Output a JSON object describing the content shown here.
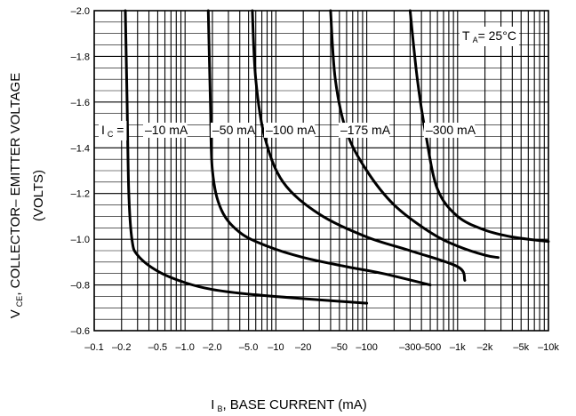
{
  "chart_data": {
    "type": "line",
    "xlabel": "I",
    "xlabel_sub": "B",
    "xlabel_rest": ", BASE CURRENT (mA)",
    "ylabel": "V",
    "ylabel_sub": "CE",
    "ylabel_rest": ", COLLECTOR– EMITTER VOLTAGE",
    "ylabel_line2": "(VOLTS)",
    "x_scale": "log",
    "xlim": [
      -0.1,
      -10000
    ],
    "ylim": [
      -0.6,
      -2.0
    ],
    "x_ticks": [
      -0.1,
      -0.2,
      -0.5,
      -1.0,
      -2.0,
      -5.0,
      -10,
      -20,
      -50,
      -100,
      -300,
      -500,
      -1000,
      -2000,
      -5000,
      -10000
    ],
    "x_tick_labels": [
      "–0.1",
      "–0.2",
      "–0.5",
      "–1.0",
      "–2.0",
      "–5.0",
      "–10",
      "–20",
      "–50",
      "–100",
      "–300",
      "–500",
      "–1k",
      "–2k",
      "–5k",
      "–10k"
    ],
    "y_ticks": [
      -0.6,
      -0.8,
      -1.0,
      -1.2,
      -1.4,
      -1.6,
      -1.8,
      -2.0
    ],
    "y_tick_labels": [
      "–0.6",
      "–0.8",
      "–1.0",
      "–1.2",
      "–1.4",
      "–1.6",
      "–1.8",
      "–2.0"
    ],
    "grid": true,
    "condition": {
      "prefix": "T",
      "sub": "A",
      "rest": "= 25°C"
    },
    "series_prefix": {
      "main": "I",
      "sub": "C",
      "rest": " ="
    },
    "series": [
      {
        "name": "–10 mA",
        "points": [
          [
            -0.22,
            -2.0
          ],
          [
            -0.23,
            -1.6
          ],
          [
            -0.24,
            -1.2
          ],
          [
            -0.26,
            -1.0
          ],
          [
            -0.3,
            -0.93
          ],
          [
            -0.5,
            -0.86
          ],
          [
            -1.0,
            -0.81
          ],
          [
            -2.0,
            -0.78
          ],
          [
            -5.0,
            -0.76
          ],
          [
            -20,
            -0.74
          ],
          [
            -100,
            -0.72
          ]
        ]
      },
      {
        "name": "–50 mA",
        "points": [
          [
            -1.8,
            -2.0
          ],
          [
            -1.9,
            -1.6
          ],
          [
            -2.0,
            -1.3
          ],
          [
            -2.5,
            -1.13
          ],
          [
            -4.0,
            -1.03
          ],
          [
            -8.0,
            -0.97
          ],
          [
            -20,
            -0.92
          ],
          [
            -60,
            -0.88
          ],
          [
            -150,
            -0.85
          ],
          [
            -500,
            -0.8
          ]
        ]
      },
      {
        "name": "–100 mA",
        "points": [
          [
            -5.5,
            -2.0
          ],
          [
            -6.0,
            -1.7
          ],
          [
            -7.5,
            -1.45
          ],
          [
            -12,
            -1.25
          ],
          [
            -30,
            -1.11
          ],
          [
            -100,
            -1.01
          ],
          [
            -300,
            -0.95
          ],
          [
            -1000,
            -0.88
          ],
          [
            -1200,
            -0.82
          ]
        ]
      },
      {
        "name": "–175 mA",
        "points": [
          [
            -40,
            -2.0
          ],
          [
            -45,
            -1.7
          ],
          [
            -60,
            -1.47
          ],
          [
            -100,
            -1.3
          ],
          [
            -200,
            -1.15
          ],
          [
            -500,
            -1.03
          ],
          [
            -1000,
            -0.97
          ],
          [
            -2000,
            -0.93
          ],
          [
            -2800,
            -0.92
          ]
        ]
      },
      {
        "name": "–300 mA",
        "points": [
          [
            -300,
            -2.0
          ],
          [
            -360,
            -1.7
          ],
          [
            -450,
            -1.45
          ],
          [
            -600,
            -1.22
          ],
          [
            -1000,
            -1.1
          ],
          [
            -2000,
            -1.04
          ],
          [
            -4000,
            -1.01
          ],
          [
            -10000,
            -0.99
          ]
        ]
      }
    ]
  }
}
